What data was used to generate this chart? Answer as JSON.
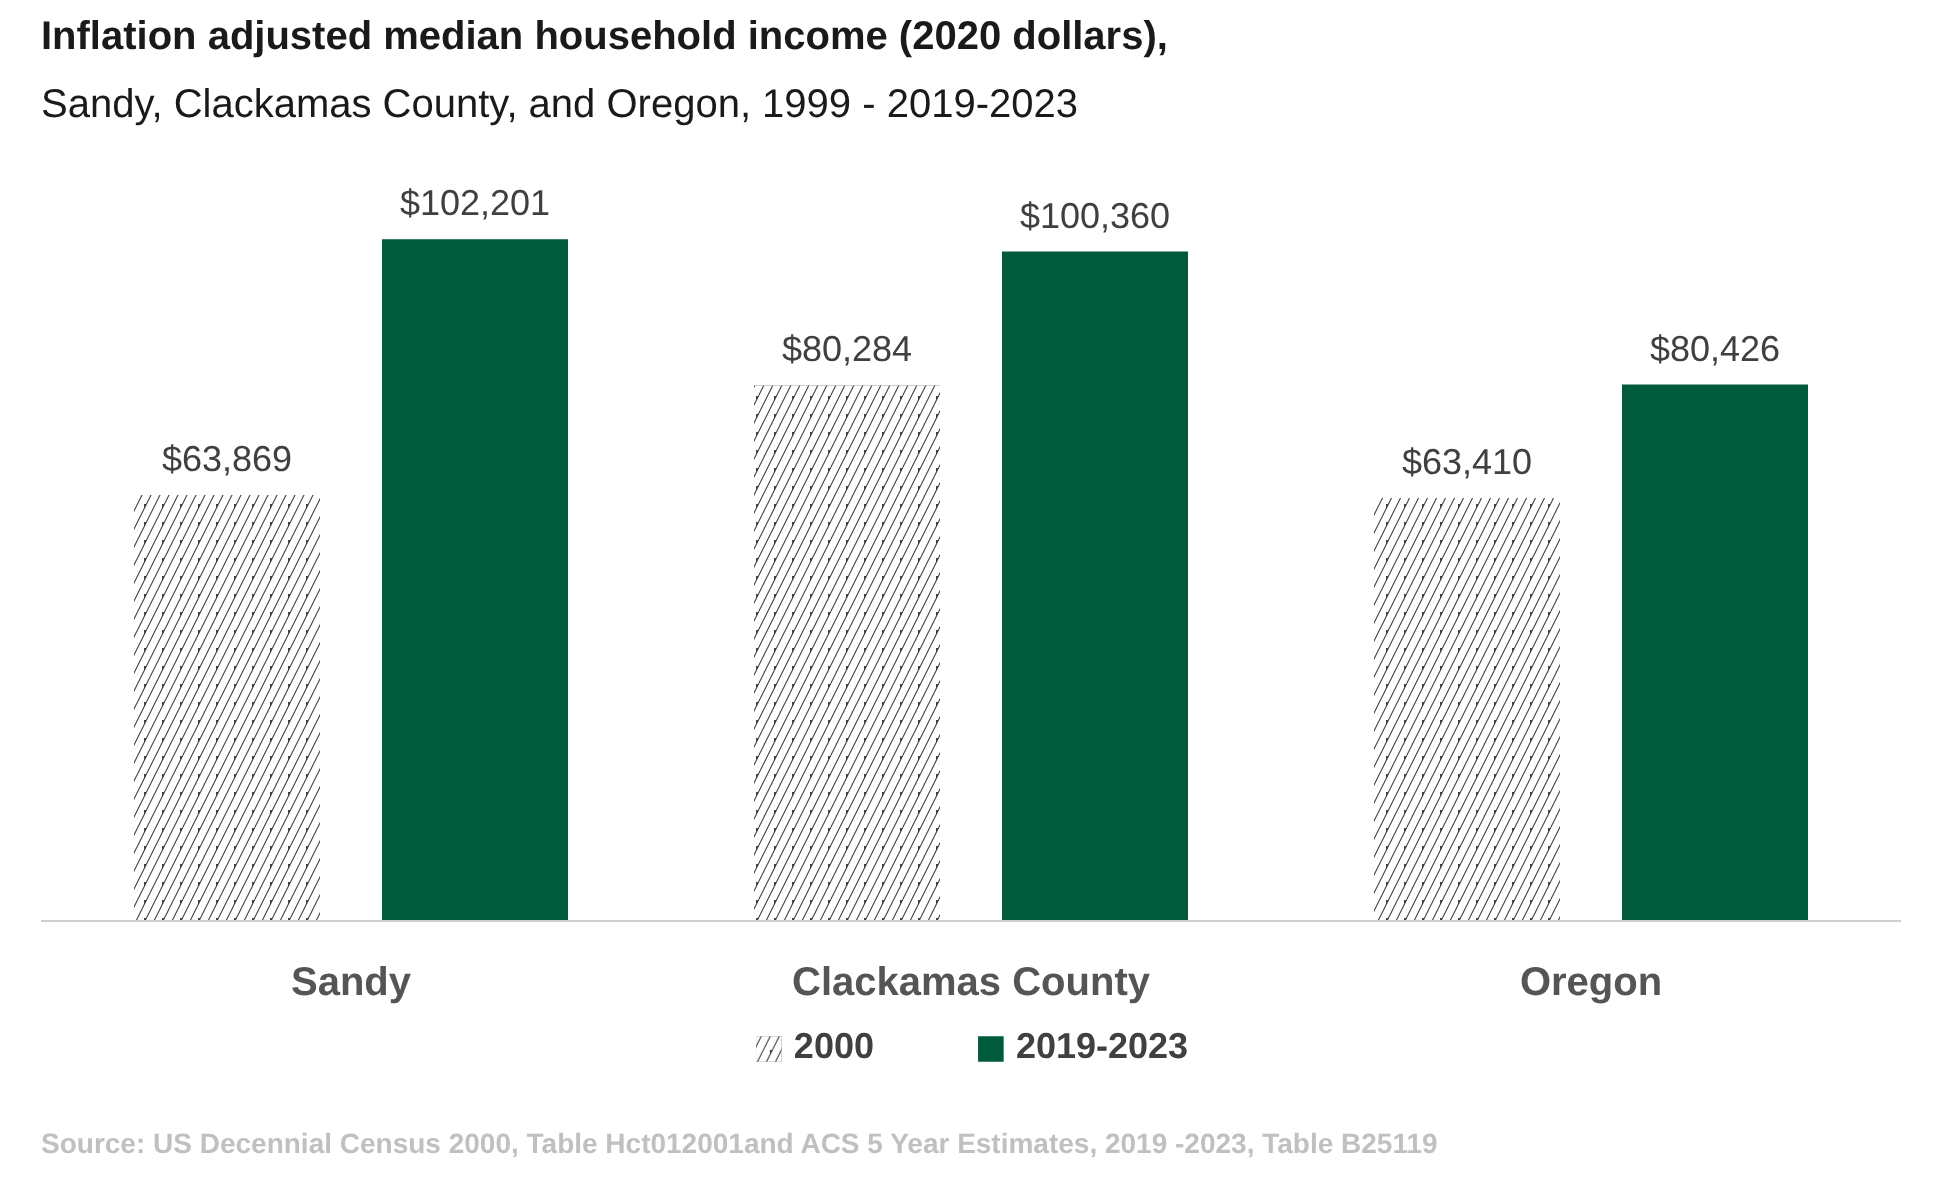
{
  "chart_data": {
    "type": "bar",
    "title": "Inflation adjusted median household income (2020 dollars),",
    "subtitle": "Sandy, Clackamas County, and Oregon, 1999 - 2019-2023",
    "categories": [
      "Sandy",
      "Clackamas County",
      "Oregon"
    ],
    "series": [
      {
        "name": "2000",
        "color": "#404040",
        "values": [
          63869,
          80284,
          63410
        ],
        "value_labels": [
          "$63,869",
          "$80,284",
          "$63,410"
        ]
      },
      {
        "name": "2019-2023",
        "color": "#005a3c",
        "values": [
          102201,
          100360,
          80426
        ],
        "value_labels": [
          "$102,201",
          "$100,360",
          "$80,426"
        ]
      }
    ],
    "legend": "bottom",
    "grid": false,
    "annotations": [
      "Source: US Decennial Census 2000, Table Hct012001and ACS 5 Year Estimates, 2019 -2023, Table B25119"
    ]
  }
}
